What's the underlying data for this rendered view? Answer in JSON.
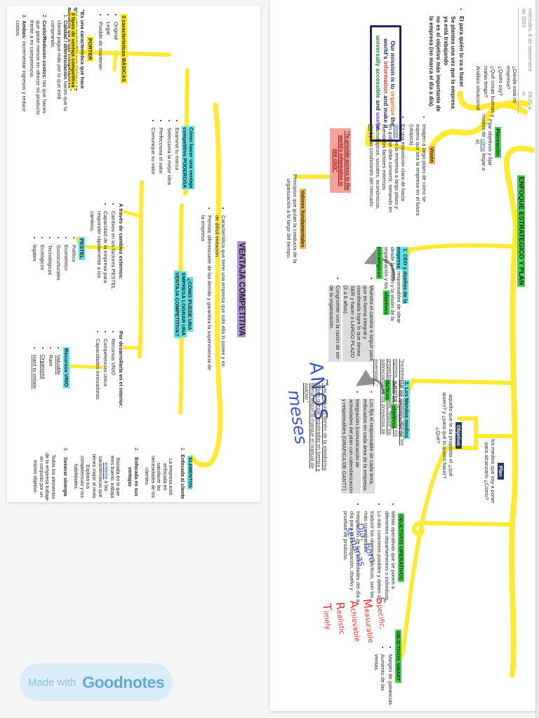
{
  "badge": {
    "made_with": "Made with",
    "brand": "Goodnotes"
  },
  "colors": {
    "highlight_yellow": "#ffe817",
    "highlight_green": "#3ed344",
    "highlight_cyan": "#5fe0e4",
    "highlight_purple": "#a98fd8",
    "highlight_orange": "#f6b73c",
    "label_navy": "#1f3864",
    "hand_blue": "#3a57c4",
    "hand_red": "#e23128",
    "quote_box_bg": "#f2a49c"
  },
  "left_page": {
    "title": "VENTAJA COMPETITIVA",
    "definition_bullets": [
      "Característica que tiene una empresa que solo ella lo posee y es de difícil imitación.",
      "Permite diferenciarte de las demás y garantiza la supervivencia de la empresa"
    ],
    "como_puede": "¿CÓMO PUEDE UNA EMPRESA LOGRAR UNA VENTAJA COMPETITIVA?",
    "poderosa": {
      "heading": "Cómo hacer una ventaja competitiva PODEROSA",
      "bullets": [
        "Examina tu marca",
        "Selecciona la mejor idea",
        "Perfecciona el valor",
        "Comunique su valor"
      ]
    },
    "porter": {
      "heading": "PORTER",
      "quote": "\"Es una característica que hace que una compañía sea única y se adelante así a sus competidores\""
    },
    "basicas": {
      "heading": "3 características BÁSICAS",
      "items": [
        "Original",
        "Legal",
        "Posible de mantener"
      ]
    },
    "tipos": {
      "heading": "3 tipos de ventaja competitiva",
      "items": [
        {
          "b": "Calidad / diferenciación",
          "t": " hacen que tu cliente pague más por lo que está comprando."
        },
        {
          "b": "Costo/Reducen costos:",
          "t": " las que hacen que gaste menos en ofrecer mi producto frente a mi competencia."
        },
        {
          "b": "Ambas:",
          "t": " incrementar ingresos y reducir costos."
        }
      ]
    },
    "externos": {
      "heading": "A través de cambios externos:",
      "bullets": [
        "Cambios en los factores PESTEL.",
        "Capacidad de la empresa para responder rápidamente a los cambios."
      ]
    },
    "pestel": {
      "heading": "PESTEL",
      "items": [
        "Político",
        "Económico",
        "Socioculturales",
        "Tecnológicos",
        "Ecológicos",
        "legales"
      ]
    },
    "interior": {
      "heading": "Por desarrollarla en el interior:",
      "bullets": [
        "Recursos VRIO",
        "Competencias única",
        "Capacidades innovadoras"
      ]
    },
    "vrio": {
      "heading": "Recursos VRIO",
      "items": [
        {
          "t": "Valuable",
          "cls": "red-u"
        },
        {
          "t": "Rare"
        },
        {
          "t": "Organized",
          "cls": "red-u"
        },
        {
          "t": "Hard to imitate",
          "cls": "red-u"
        }
      ]
    },
    "elementos": {
      "heading": "ELEMENTOS",
      "items": [
        {
          "b": "Enfocada al cliente",
          "br": true,
          "t": "La empresa está enfocada en satisfacer las necesidades de los clientes."
        },
        {
          "b": "Enfocada en sus ventajas",
          "br": true,
          "parts": [
            {
              "t": "Basada en lo que eres bueno, trabaja "
            },
            {
              "t": "entorno",
              "cls": "blue-u"
            },
            {
              "t": " a las características que tienes mejor al resto. Explota tus competencias y tus habilidades."
            }
          ]
        },
        {
          "b": "Generar sinergia",
          "br": true,
          "t": "Todos los elementos de la empresa trabaje en conjunto por un mismo objetivo."
        }
      ]
    }
  },
  "right_page": {
    "date": "miércoles, 6 de septiembre de 2023",
    "time": "09:20 a. m.",
    "para_quien": [
      "El para quién lo va a hacer",
      "Se plantea una vez que la empresa ya está trabajando",
      "no es el objetivo más importante de la empresa (no marca el día a día)."
    ],
    "mission_parts": [
      {
        "t": "Our mission is to "
      },
      {
        "t": "organize",
        "cls": "m-or"
      },
      {
        "t": " the world's "
      },
      {
        "t": "information",
        "cls": "m-rd"
      },
      {
        "t": " and make it "
      },
      {
        "t": "universally accessible",
        "cls": "m-gr"
      },
      {
        "t": " and "
      },
      {
        "t": "useful",
        "cls": "m-bl"
      },
      {
        "t": "."
      }
    ],
    "questions": [
      "¿Dónde está mi empresa?",
      "¿Quién soy?",
      "¿Qué cosas buenas y malas tengo?",
      "Análisis situacional"
    ],
    "planeacion": {
      "label": "Planeación",
      "text_parts": [
        {
          "t": "Fijar objetivos y fijar modos de "
        },
        {
          "t": "cómo",
          "cls": "blue-u"
        },
        {
          "t": " llegar a él."
        }
      ]
    },
    "title": "ENFOQUE ESTRATEGICO Y PLAN",
    "vision": {
      "label": "Visión",
      "bullets": [
        {
          "t": "Imagen a largo plazo de cómo se espera que sea la empresa en el futuro (Utópica)"
        },
        {
          "parts": [
            {
              "t": "Es una exposición clara de hacia "
            },
            {
              "t": "dónde",
              "cls": "blue-u"
            },
            {
              "t": " va la empresa a largo plazo y en qué se debe convertir, tomando en cuenta los factores externos (tecnológicos, sociales, económicos, "
            },
            {
              "t": "etc",
              "cls": "blue-u"
            },
            {
              "t": ".) y las condiciones del mercado."
            }
          ]
        }
      ]
    },
    "to_provide": "\"To provide access to the world's information in one click\"",
    "valores": {
      "heading": "Valores fundamentales",
      "text": "Principios que guían la conducta de la organización a lo largo del tiempo."
    },
    "ceo": {
      "heading_parts": [
        {
          "t": "1. CEO y dueños de la empresa",
          "cls": "hl-c"
        },
        {
          "t": " responsables de idear desde la misión y la visión de la organización y los "
        },
        {
          "t": "objetivos estratégicos",
          "cls": "hl-g"
        },
        {
          "t": "."
        }
      ],
      "bullets": [
        "Muestra el camino a seguir para que en forma integral y coordinada logre lo que desea SER y hacer a LARGO PLAZO (2 a 6 años)",
        "Congruente con la razón de ser de la organización."
      ],
      "quote": "\"Incrementar los ingresos, reducir los egresos, aumentar el valor de los proyectos aprobados, reducir los sobrecostos en los proyectos de inversión...\"",
      "handwriting": "AÑOS"
    },
    "mandos": {
      "heading_parts": [
        {
          "t": "2. Los Mandos medios",
          "cls": "hl-c"
        },
        {
          "t": " son los responsables de definir los "
        },
        {
          "t": "objetivos tácticos",
          "cls": "hl-g"
        }
      ],
      "bullets": [
        "Los fija el responsable de cada área, enfocados en cada área de la empresa.",
        "Integración (comunicación de actividades del plan con calendarización y responsables (GRAFICA DE GANTT)"
      ],
      "quote": "\"Las capturas dentro de la plataforma deben quedar registradas en tiempo y forma según lo marque el manual de AMOW.\"",
      "handwriting": "meses"
    },
    "objetivo": {
      "label": "Objetivo",
      "text": "aquello que le da propósito el ¿qué quiero? y ¿para qué lo quiero hacer? ¿Qué?"
    },
    "plan": {
      "label": "Plan",
      "text": "los medios que voy a poner para alcanzarlo ¿Cómo?"
    },
    "operativos": {
      "heading": "OBJETIVOS OPERATIVOS",
      "bullets": [
        "Metas operativas que se ponen a diferentes departamentos o individuos.",
        "Lo más concretos posibles y deben de traducir los objetivos tácticos, son los más cuantitativos.",
        "Integración de las actividades del día a día para la investigación, diseño y pruebas de producto."
      ],
      "handwriting_lines": [
        "Día, hora",
        "semanas"
      ]
    },
    "smart": {
      "heading": "OBJETIVOS SMART",
      "bullets": [
        "Margen de ganancias.",
        "Aumento de las ventas."
      ],
      "handwriting_lines": [
        "Specific,",
        "Measurable",
        "Achievable",
        "Realistic",
        "Timely"
      ]
    }
  }
}
